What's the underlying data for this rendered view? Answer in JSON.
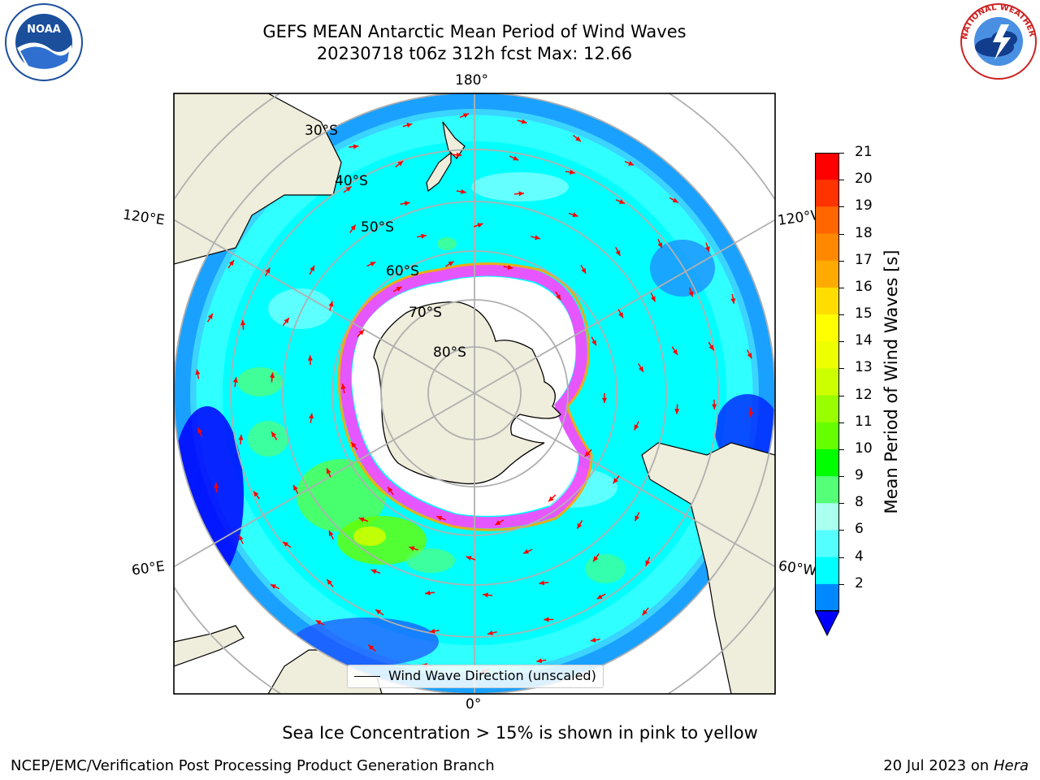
{
  "title": {
    "line1": "GEFS MEAN Antarctic Mean Period of Wind Waves",
    "line2": "20230718 t06z 312h fcst   Max: 12.66"
  },
  "map": {
    "projection": "south-polar-stereographic",
    "lat_labels": [
      "30°S",
      "40°S",
      "50°S",
      "60°S",
      "70°S",
      "80°S"
    ],
    "lon_labels": {
      "top": "180°",
      "bottom": "0°",
      "left_upper": "120°E",
      "left_lower": "60°E",
      "right_upper": "120°W",
      "right_lower": "60°W"
    },
    "land_color": "#efeddb",
    "ocean_base_color": "#00ffff",
    "arrow_color": "#ff0000",
    "ice_edge_colors": [
      "#ff44ff",
      "#ff00cc",
      "#ffa500",
      "#ffff00"
    ]
  },
  "legend": {
    "entry": "Wind Wave Direction (unscaled)"
  },
  "colorbar": {
    "label": "Mean Period of Wind Waves [s]",
    "ticks": [
      "21",
      "20",
      "19",
      "18",
      "17",
      "16",
      "15",
      "14",
      "13",
      "12",
      "11",
      "10",
      "9",
      "8",
      "6",
      "4",
      "2"
    ],
    "colors_top_to_bottom": [
      "#ff0000",
      "#ff3300",
      "#ff6600",
      "#ff8800",
      "#ffaa00",
      "#ffdd00",
      "#ffff00",
      "#eeff00",
      "#ccff00",
      "#99ff00",
      "#66ff00",
      "#00ff00",
      "#55ff77",
      "#aaffee",
      "#55ffff",
      "#00ffff",
      "#0088ff"
    ],
    "under_color": "#0000ff"
  },
  "caption": "Sea Ice Concentration > 15% is shown in pink to yellow",
  "footer": {
    "left": "NCEP/EMC/Verification Post Processing Product Generation Branch",
    "date": "20 Jul 2023 on ",
    "machine": "Hera"
  },
  "logos": {
    "left": "NOAA",
    "right": "NATIONAL WEATHER SERVICE"
  }
}
